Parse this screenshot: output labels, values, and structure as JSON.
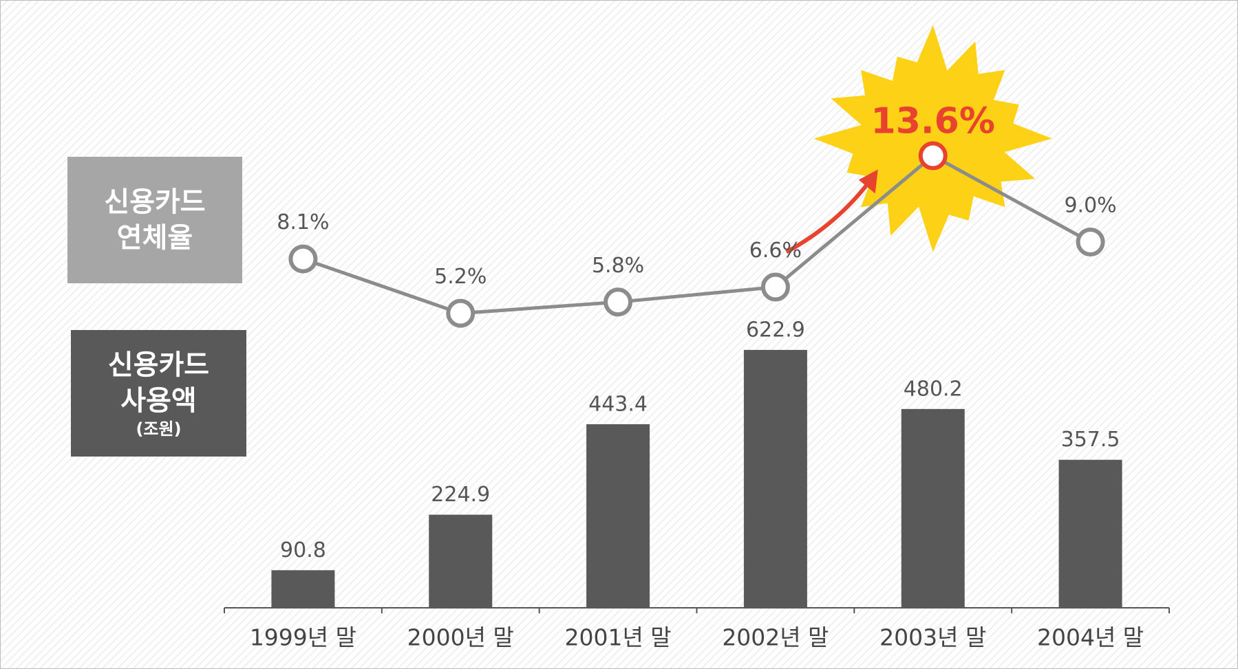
{
  "chart_data": {
    "type": "bar-line",
    "categories": [
      "1999년 말",
      "2000년 말",
      "2001년 말",
      "2002년 말",
      "2003년 말",
      "2004년 말"
    ],
    "series": [
      {
        "name": "신용카드 사용액",
        "unit": "(조원)",
        "type": "bar",
        "color": "#595959",
        "values": [
          90.8,
          224.9,
          443.4,
          622.9,
          480.2,
          357.5
        ]
      },
      {
        "name": "신용카드 연체율",
        "type": "line",
        "axis": "y2",
        "color": "#8c8c8c",
        "values": [
          8.1,
          5.2,
          5.8,
          6.6,
          13.6,
          9.0
        ],
        "value_labels": [
          "8.1%",
          "5.2%",
          "5.8%",
          "6.6%",
          "13.6%",
          "9.0%"
        ],
        "highlight": 4,
        "highlight_color": "#e8432e"
      }
    ],
    "ylim": [
      0,
      1400
    ],
    "y2lim": [
      -10.5,
      20.4
    ]
  }
}
